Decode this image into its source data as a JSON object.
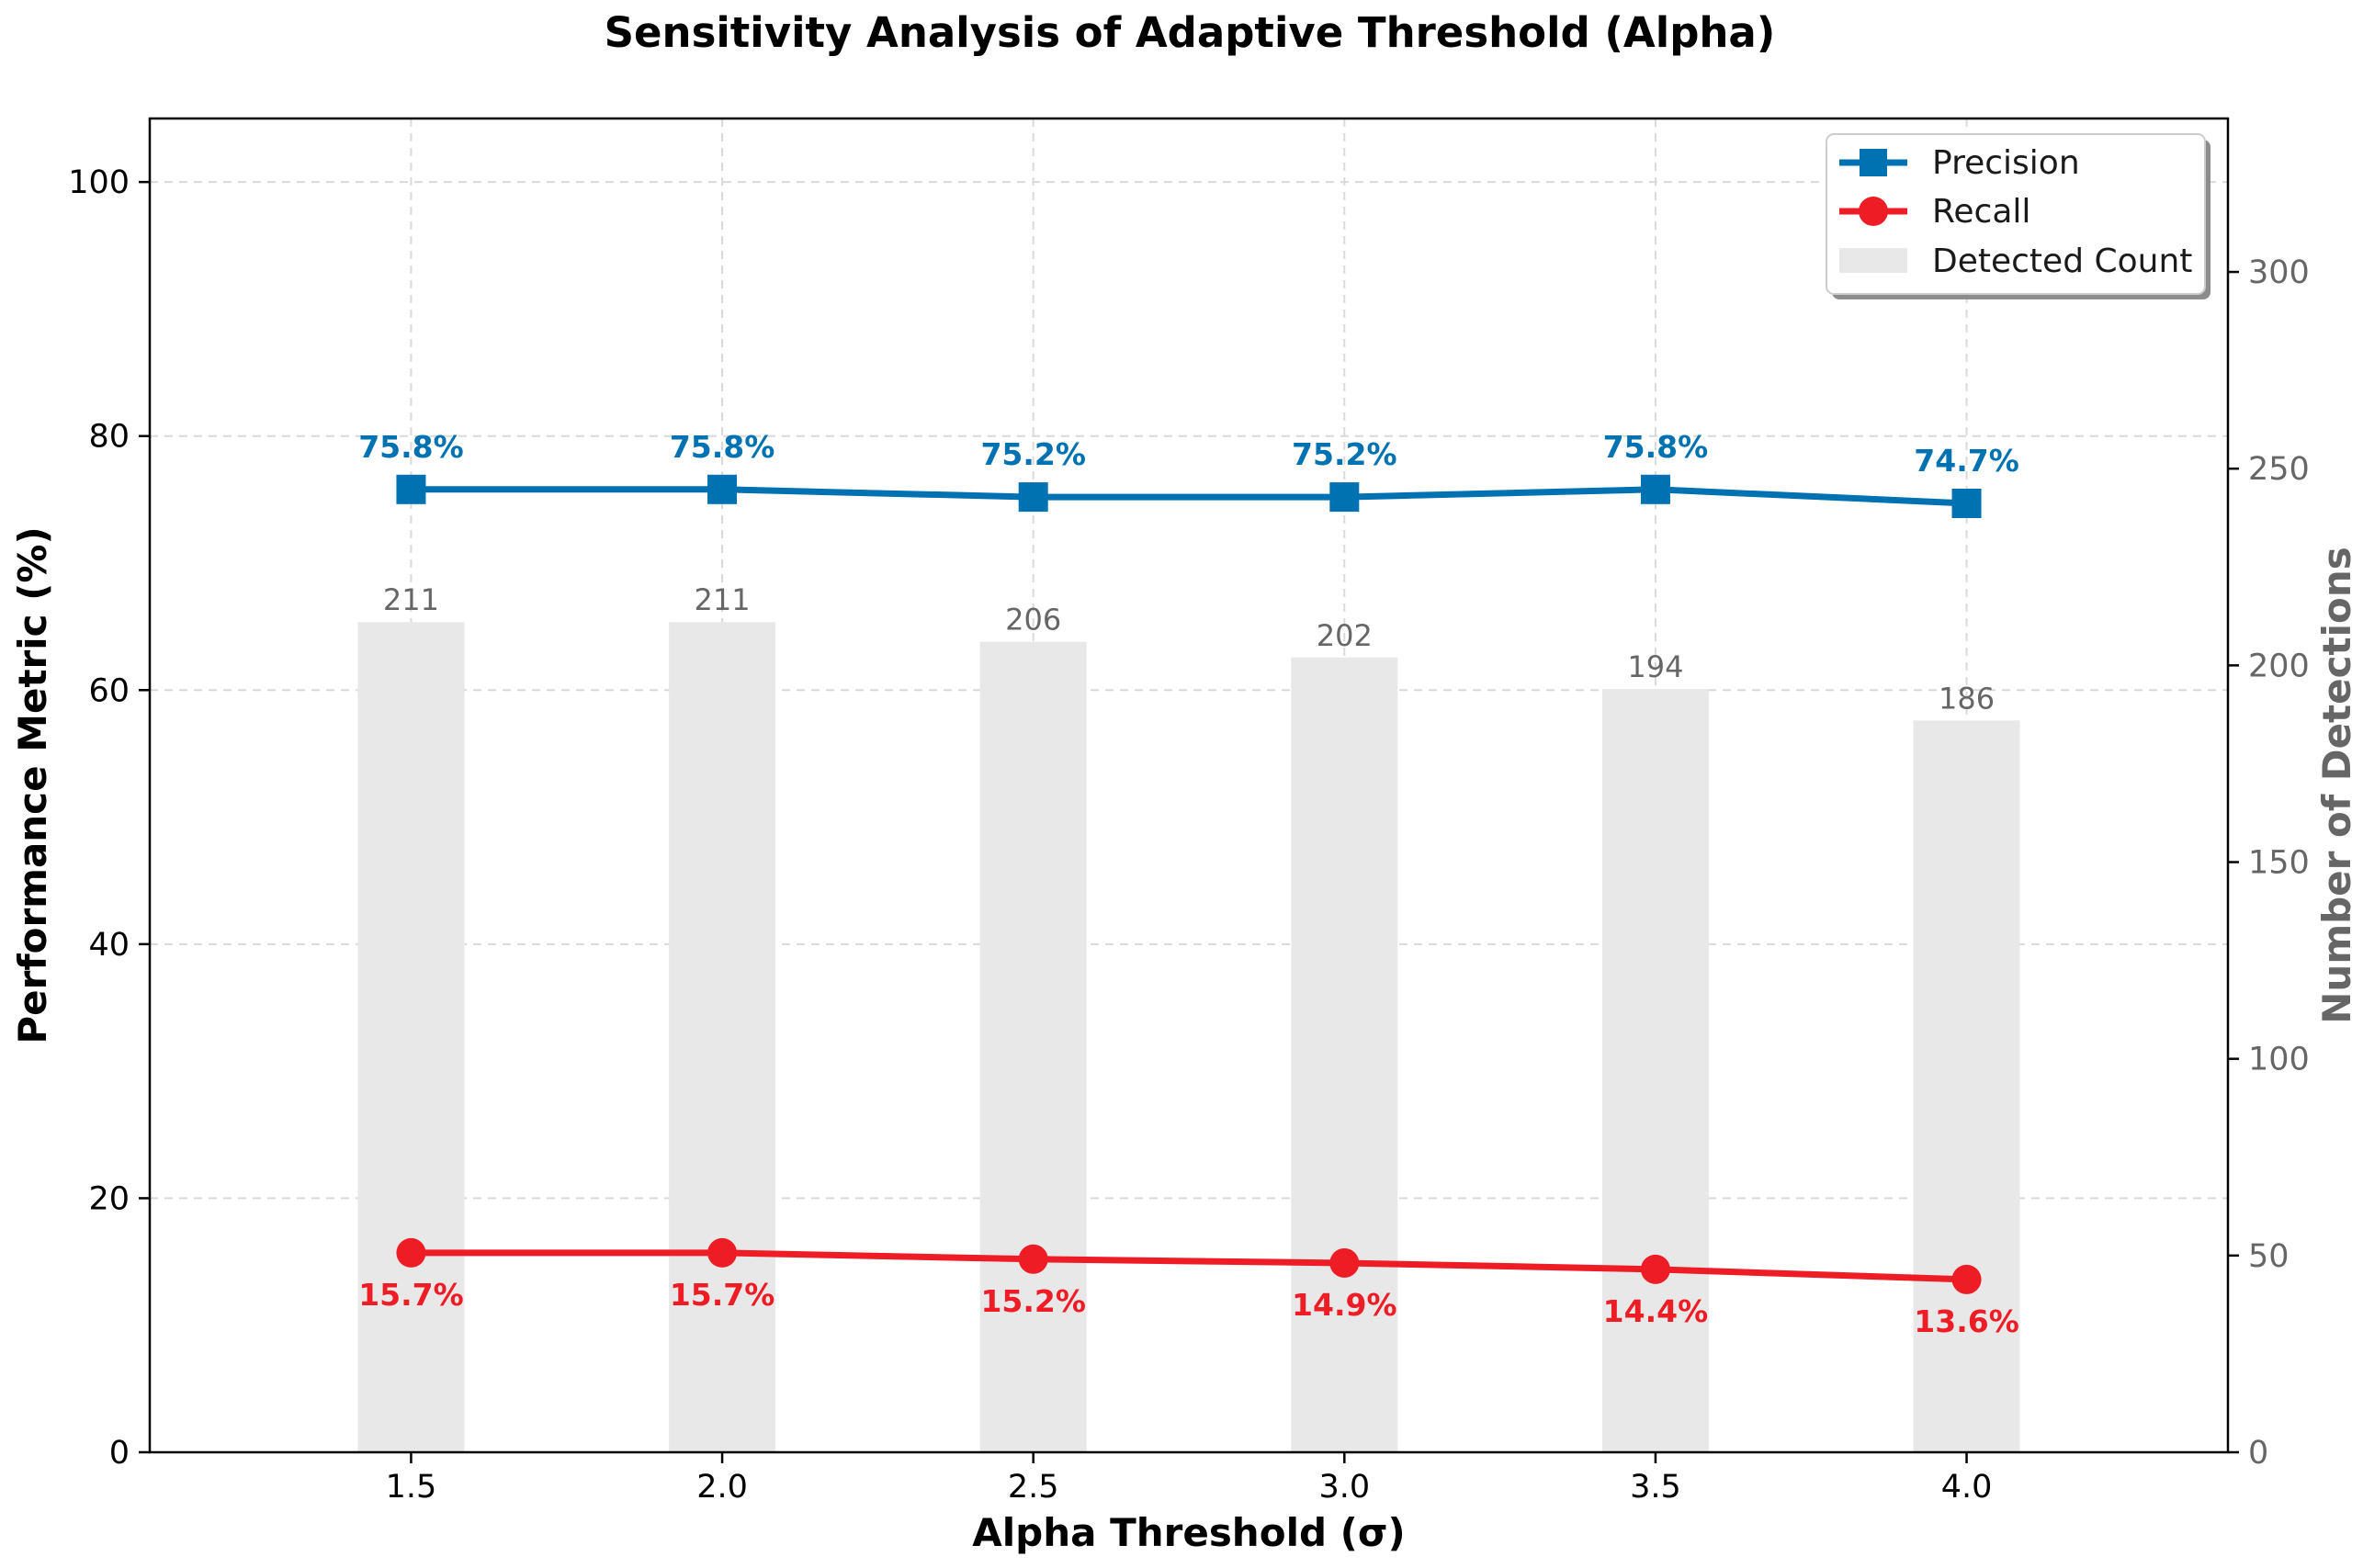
{
  "chart_data": {
    "type": "line",
    "title": "Sensitivity Analysis of Adaptive Threshold (Alpha)",
    "xlabel": "Alpha Threshold (σ)",
    "ylabel": "Performance Metric (%)",
    "y2label": "Number of Detections",
    "x": [
      1.5,
      2.0,
      2.5,
      3.0,
      3.5,
      4.0
    ],
    "x_tick_labels": [
      "1.5",
      "2.0",
      "2.5",
      "3.0",
      "3.5",
      "4.0"
    ],
    "xlim": [
      1.08,
      4.42
    ],
    "ylim": [
      0,
      105
    ],
    "y_ticks": [
      0,
      20,
      40,
      60,
      80,
      100
    ],
    "y2lim": [
      0,
      339
    ],
    "y2_ticks": [
      0,
      50,
      100,
      150,
      200,
      250,
      300
    ],
    "grid": true,
    "legend_position": "top-right",
    "series": [
      {
        "name": "Precision",
        "axis": "left",
        "kind": "line",
        "marker": "square",
        "color": "#0072B2",
        "values": [
          75.8,
          75.8,
          75.2,
          75.2,
          75.8,
          74.7
        ],
        "labels": [
          "75.8%",
          "75.8%",
          "75.2%",
          "75.2%",
          "75.8%",
          "74.7%"
        ]
      },
      {
        "name": "Recall",
        "axis": "left",
        "kind": "line",
        "marker": "circle",
        "color": "#EE1C25",
        "values": [
          15.7,
          15.7,
          15.2,
          14.9,
          14.4,
          13.6
        ],
        "labels": [
          "15.7%",
          "15.7%",
          "15.2%",
          "14.9%",
          "14.4%",
          "13.6%"
        ]
      },
      {
        "name": "Detected Count",
        "axis": "right",
        "kind": "bar",
        "color": "#E8E8E8",
        "values": [
          211,
          211,
          206,
          202,
          194,
          186
        ],
        "labels": [
          "211",
          "211",
          "206",
          "202",
          "194",
          "186"
        ]
      }
    ]
  }
}
